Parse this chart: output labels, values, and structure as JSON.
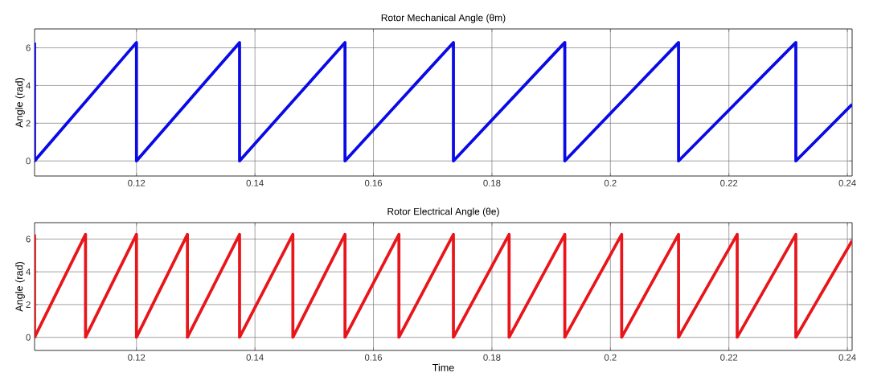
{
  "chart_data": [
    {
      "type": "line",
      "title": "Rotor Mechanical Angle (θm)",
      "ylabel": "Angle (rad)",
      "x": [
        0.1028,
        0.1028,
        0.12,
        0.12,
        0.1374,
        0.1374,
        0.1552,
        0.1552,
        0.1735,
        0.1735,
        0.1923,
        0.1923,
        0.2115,
        0.2115,
        0.2313,
        0.2313,
        0.2408
      ],
      "series": [
        {
          "color": "#0a0ae6",
          "values": [
            6.28,
            0,
            6.28,
            0,
            6.28,
            0,
            6.28,
            0,
            6.28,
            0,
            6.28,
            0,
            6.28,
            0,
            6.28,
            0,
            3.0
          ]
        }
      ],
      "xlim": [
        0.1028,
        0.2408
      ],
      "ylim": [
        -0.8,
        7
      ],
      "xticks": [
        0.12,
        0.14,
        0.16,
        0.18,
        0.2,
        0.22,
        0.24
      ],
      "yticks": [
        0,
        2,
        4,
        6
      ],
      "grid": true
    },
    {
      "type": "line",
      "title": "Rotor Electrical Angle (θe)",
      "ylabel": "Angle (rad)",
      "xlabel": "Time",
      "x": [
        0.1028,
        0.1028,
        0.1114,
        0.1114,
        0.12,
        0.12,
        0.1286,
        0.1286,
        0.1374,
        0.1374,
        0.1464,
        0.1464,
        0.1552,
        0.1552,
        0.1643,
        0.1643,
        0.1735,
        0.1735,
        0.1829,
        0.1829,
        0.1923,
        0.1923,
        0.2019,
        0.2019,
        0.2115,
        0.2115,
        0.2214,
        0.2214,
        0.2313,
        0.2313,
        0.2408
      ],
      "series": [
        {
          "color": "#e8161b",
          "values": [
            6.28,
            0,
            6.28,
            0,
            6.28,
            0,
            6.28,
            0,
            6.28,
            0,
            6.28,
            0,
            6.28,
            0,
            6.28,
            0,
            6.28,
            0,
            6.28,
            0,
            6.28,
            0,
            6.28,
            0,
            6.28,
            0,
            6.28,
            0,
            6.28,
            0,
            5.9
          ]
        }
      ],
      "xlim": [
        0.1028,
        0.2408
      ],
      "ylim": [
        -0.8,
        7
      ],
      "xticks": [
        0.12,
        0.14,
        0.16,
        0.18,
        0.2,
        0.22,
        0.24
      ],
      "yticks": [
        0,
        2,
        4,
        6
      ],
      "grid": true
    }
  ]
}
